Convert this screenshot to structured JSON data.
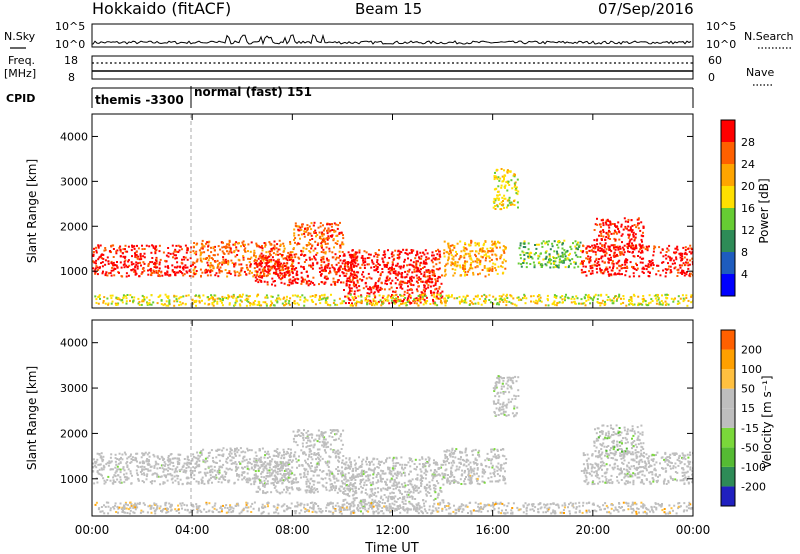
{
  "header": {
    "station": "Hokkaido (fitACF)",
    "beam": "Beam 15",
    "date": "07/Sep/2016"
  },
  "summary": {
    "nsky_label": "N.Sky",
    "nsearch_label": "N.Search",
    "freq_label_top": "Freq.",
    "freq_label_unit": "[MHz]",
    "nave_label": "Nave",
    "cpid_label": "CPID",
    "noise_ticks_left": [
      "10^5",
      "10^0"
    ],
    "noise_ticks_right": [
      "10^5",
      "10^0"
    ],
    "freq_ticks": [
      "18",
      "8"
    ],
    "nave_ticks": [
      "60",
      "0"
    ],
    "cpid_segments": [
      {
        "label": "themis -3300",
        "start_hour": 0,
        "end_hour": 4
      },
      {
        "label": "normal (fast) 151",
        "start_hour": 4,
        "end_hour": 24
      }
    ]
  },
  "colors": {
    "power": [
      "#0000ff",
      "#1e5cbe",
      "#2e8b57",
      "#66cc33",
      "#ffe000",
      "#ffa500",
      "#ff6000",
      "#ff0000"
    ],
    "velocity": [
      "#2020c0",
      "#2e8b57",
      "#55bb33",
      "#7ad83a",
      "#bebebe",
      "#bebebe",
      "#ffc040",
      "#ffa000",
      "#ff6000",
      "#ff1010"
    ],
    "ground_scatter": "#bebebe"
  },
  "chart_data": [
    {
      "type": "heatmap",
      "name_key": "power",
      "ylabel": "Slant Range [km]",
      "xlabel": "",
      "x_ticks": [
        "00:00",
        "04:00",
        "08:00",
        "12:00",
        "16:00",
        "20:00",
        "00:00"
      ],
      "xlim_hours": [
        0,
        24
      ],
      "ylim": [
        180,
        4500
      ],
      "y_ticks": [
        1000,
        2000,
        3000,
        4000
      ],
      "colorbar_label": "Power [dB]",
      "colorbar_ticks": [
        "28",
        "24",
        "20",
        "16",
        "12",
        "8",
        "4"
      ],
      "scatter_regions": [
        {
          "x": [
            0.0,
            4.0
          ],
          "y": [
            900,
            1600
          ],
          "level": 7
        },
        {
          "x": [
            4.0,
            8.0
          ],
          "y": [
            900,
            1700
          ],
          "level": 6
        },
        {
          "x": [
            6.5,
            10.5
          ],
          "y": [
            700,
            1400
          ],
          "level": 7
        },
        {
          "x": [
            8.0,
            10.0
          ],
          "y": [
            1400,
            2100
          ],
          "level": 6
        },
        {
          "x": [
            10.0,
            14.0
          ],
          "y": [
            300,
            1500
          ],
          "level": 7
        },
        {
          "x": [
            14.0,
            16.5
          ],
          "y": [
            900,
            1700
          ],
          "level": 5
        },
        {
          "x": [
            16.0,
            17.0
          ],
          "y": [
            2400,
            3300
          ],
          "level": 4
        },
        {
          "x": [
            17.0,
            19.5
          ],
          "y": [
            1100,
            1700
          ],
          "level": 3
        },
        {
          "x": [
            19.5,
            24.0
          ],
          "y": [
            900,
            1600
          ],
          "level": 7
        },
        {
          "x": [
            20.0,
            22.0
          ],
          "y": [
            1500,
            2200
          ],
          "level": 7
        },
        {
          "x": [
            0.0,
            24.0
          ],
          "y": [
            250,
            500
          ],
          "level": 4
        }
      ]
    },
    {
      "type": "heatmap",
      "name_key": "velocity",
      "ylabel": "Slant Range [km]",
      "xlabel": "Time UT",
      "x_ticks": [
        "00:00",
        "04:00",
        "08:00",
        "12:00",
        "16:00",
        "20:00",
        "00:00"
      ],
      "xlim_hours": [
        0,
        24
      ],
      "ylim": [
        180,
        4500
      ],
      "y_ticks": [
        1000,
        2000,
        3000,
        4000
      ],
      "colorbar_label": "Velocity [m s⁻¹]",
      "colorbar_ticks": [
        "200",
        "100",
        "50",
        "15",
        "-15",
        "-50",
        "-100",
        "-200"
      ],
      "scatter_regions": [
        {
          "x": [
            0.0,
            4.0
          ],
          "y": [
            900,
            1600
          ],
          "level": 4
        },
        {
          "x": [
            4.0,
            8.0
          ],
          "y": [
            900,
            1700
          ],
          "level": 4
        },
        {
          "x": [
            6.5,
            10.5
          ],
          "y": [
            700,
            1400
          ],
          "level": 4
        },
        {
          "x": [
            8.0,
            10.0
          ],
          "y": [
            1400,
            2100
          ],
          "level": 4
        },
        {
          "x": [
            10.0,
            14.0
          ],
          "y": [
            300,
            1500
          ],
          "level": 4
        },
        {
          "x": [
            14.0,
            16.5
          ],
          "y": [
            900,
            1700
          ],
          "level": 4
        },
        {
          "x": [
            15.0,
            15.5
          ],
          "y": [
            900,
            1100
          ],
          "level": 6
        },
        {
          "x": [
            16.0,
            17.0
          ],
          "y": [
            2400,
            3300
          ],
          "level": 4
        },
        {
          "x": [
            19.5,
            24.0
          ],
          "y": [
            900,
            1600
          ],
          "level": 4
        },
        {
          "x": [
            20.0,
            22.0
          ],
          "y": [
            1500,
            2200
          ],
          "level": 3
        },
        {
          "x": [
            0.0,
            24.0
          ],
          "y": [
            250,
            500
          ],
          "level": 6
        }
      ]
    }
  ]
}
